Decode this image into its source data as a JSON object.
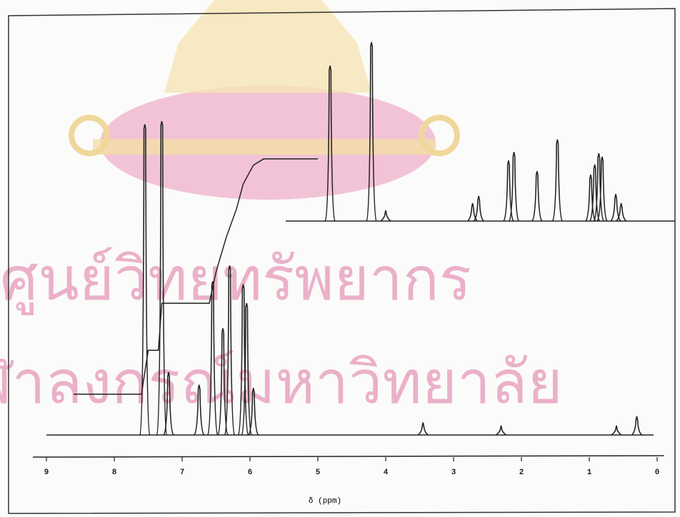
{
  "watermark": {
    "line1": "ศูนย์วิทยทรัพยากร",
    "line2": "จุฬาลงกรณ์มหาวิทยาลัย"
  },
  "chart_data": {
    "type": "nmr",
    "x_label": "δ (ppm)",
    "xlim": [
      9.2,
      -0.1
    ],
    "xticks": [
      9,
      8,
      7,
      6,
      5,
      4,
      3,
      2,
      1,
      0
    ],
    "color": "#222",
    "spectrum": {
      "x": [
        7.55,
        7.3,
        7.2,
        6.75,
        6.55,
        6.4,
        6.3,
        6.1,
        6.05,
        5.95,
        3.45,
        2.3,
        0.6,
        0.3
      ],
      "heights": [
        99,
        100,
        20,
        16,
        49,
        34,
        54,
        48,
        42,
        15,
        4,
        3,
        3,
        6
      ]
    },
    "integral": {
      "x": [
        8.6,
        7.6,
        7.5,
        7.35,
        7.3,
        6.6,
        6.5,
        6.35,
        6.2,
        6.1,
        5.95,
        5.8,
        5.0
      ],
      "y": [
        13,
        13,
        27,
        27,
        42,
        42,
        52,
        63,
        72,
        80,
        86,
        88,
        88
      ]
    },
    "inset": {
      "x": [
        4.82,
        4.21,
        4.0,
        2.72,
        2.63,
        2.19,
        2.11,
        1.77,
        1.47,
        0.98,
        0.92,
        0.86,
        0.81,
        0.61,
        0.53
      ],
      "heights": [
        49.5,
        57,
        3.4,
        5.7,
        8,
        19.3,
        22,
        15.9,
        26,
        14.8,
        18,
        21.6,
        20.5,
        8.6,
        5.7
      ]
    }
  }
}
